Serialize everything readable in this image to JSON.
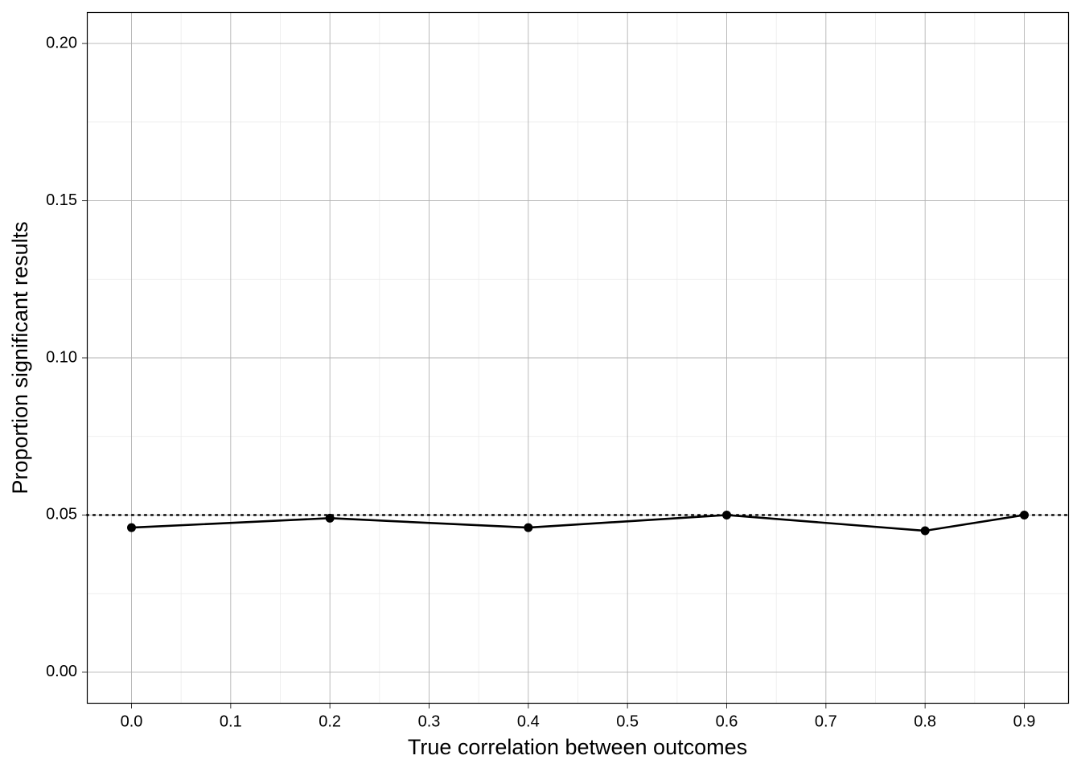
{
  "chart_data": {
    "type": "line",
    "x_label": "True correlation between outcomes",
    "y_label": "Proportion significant results",
    "x": [
      0,
      0.2,
      0.4,
      0.6,
      0.8,
      0.9
    ],
    "series": [
      {
        "color": "#000000",
        "values": [
          0.046,
          0.049,
          0.046,
          0.05,
          0.045,
          0.05
        ]
      }
    ],
    "hline": 0.05,
    "xlim": [
      -0.045,
      0.945
    ],
    "ylim": [
      -0.01,
      0.21
    ],
    "xticks": [
      {
        "value": 0,
        "label": "0.0"
      },
      0.1,
      0.2,
      0.3,
      0.4,
      0.5,
      0.6,
      0.7,
      0.8,
      0.9
    ],
    "yticks": [
      {
        "value": 0,
        "label": "0.00"
      },
      0.05,
      {
        "value": 0.1,
        "label": "0.10"
      },
      0.15,
      {
        "value": 0.2,
        "label": "0.20"
      }
    ],
    "grid": true
  }
}
